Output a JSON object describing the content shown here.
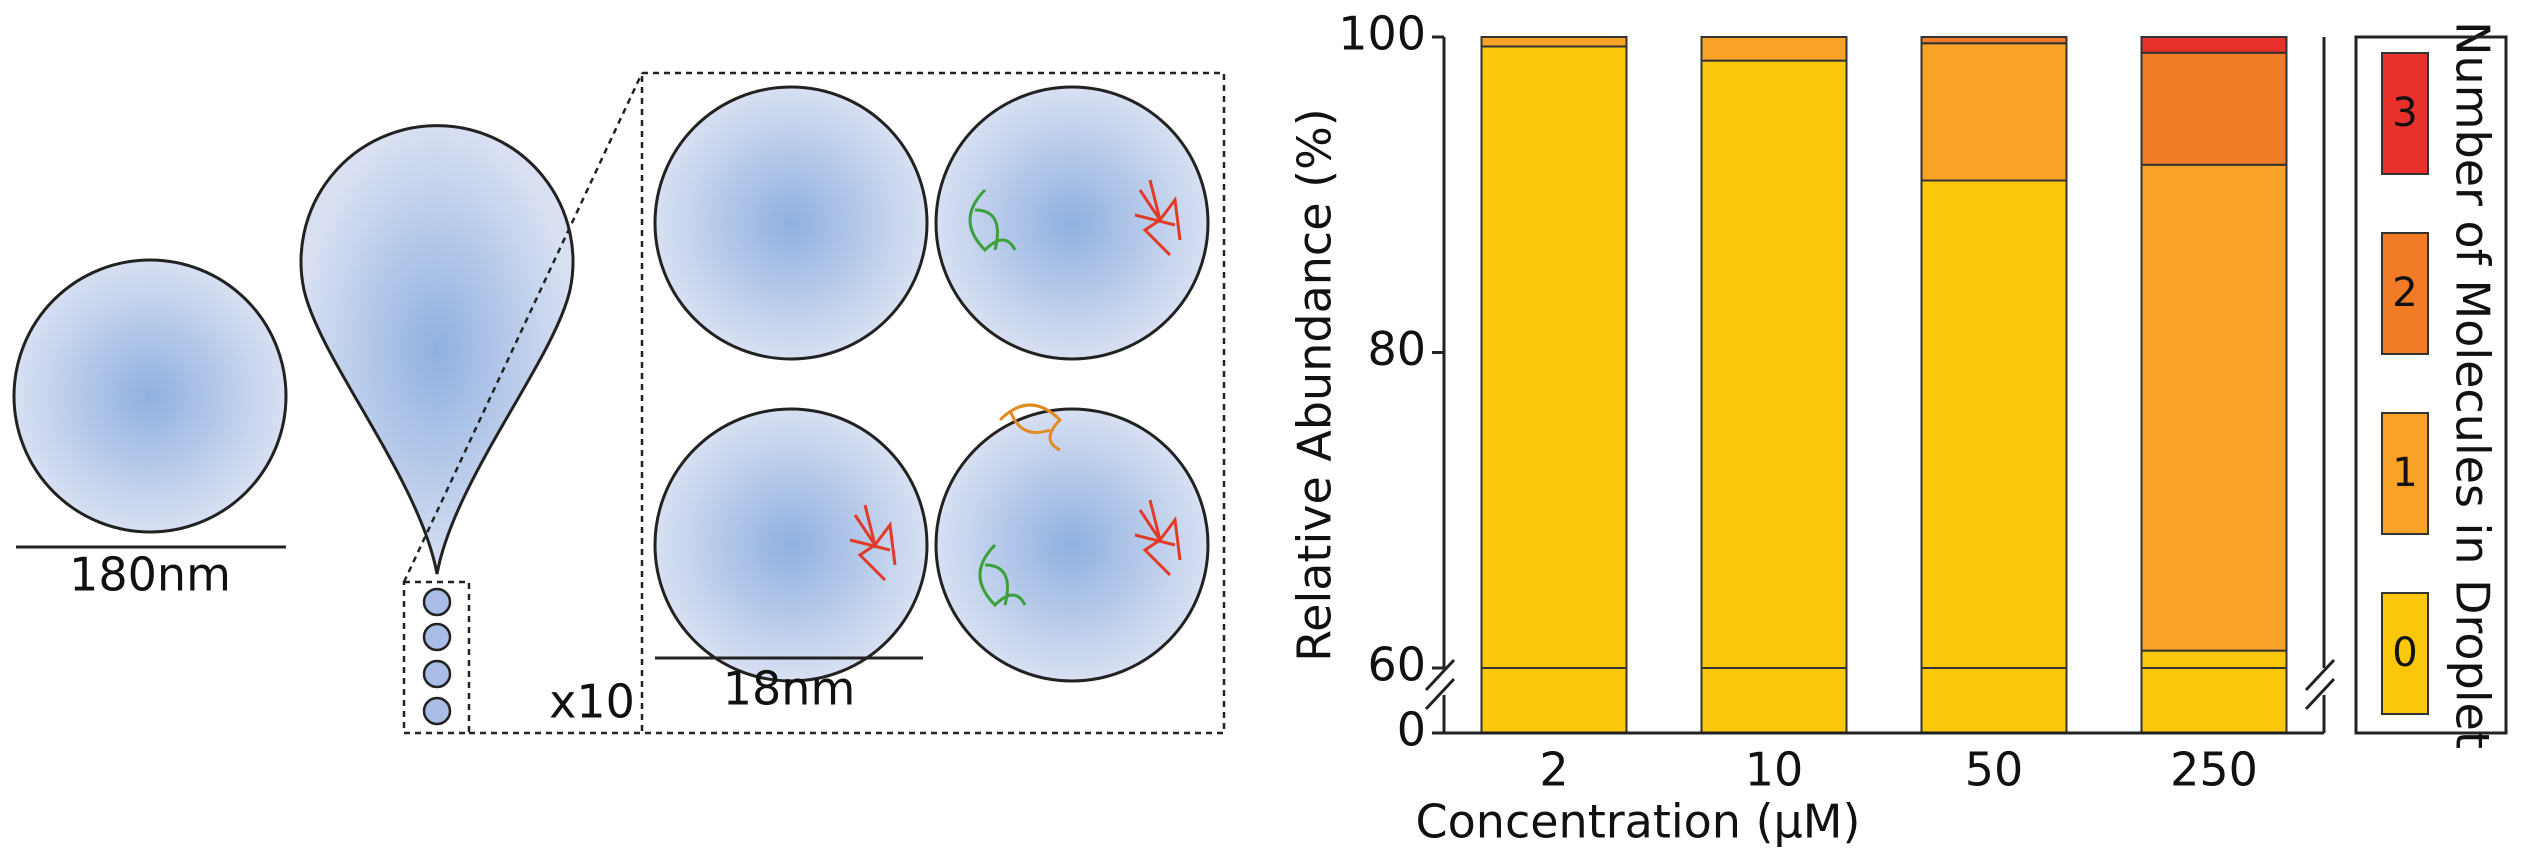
{
  "diagram": {
    "large_droplet_label": "180nm",
    "multiplier_label": "x10",
    "small_droplet_label": "18nm"
  },
  "chart_data": {
    "type": "stacked_bar",
    "x_label": "Concentration (μM)",
    "y_label": "Relative Abundance (%)",
    "categories": [
      "2",
      "10",
      "50",
      "250"
    ],
    "series": [
      {
        "name": "0",
        "color": "#fbc70a",
        "values": [
          99.4,
          98.5,
          90.9,
          61.1
        ]
      },
      {
        "name": "1",
        "color": "#f8a328",
        "values": [
          0.6,
          1.5,
          8.7,
          30.8
        ]
      },
      {
        "name": "2",
        "color": "#f27b27",
        "values": [
          0,
          0,
          0.4,
          7.1
        ]
      },
      {
        "name": "3",
        "color": "#e8312a",
        "values": [
          0,
          0,
          0,
          1.0
        ]
      }
    ],
    "ylim": [
      0,
      100
    ],
    "yticks": [
      0,
      60,
      80,
      100
    ],
    "ybreak": 60,
    "legend_title": "Number of Molecules in Droplet",
    "legend": "right"
  }
}
